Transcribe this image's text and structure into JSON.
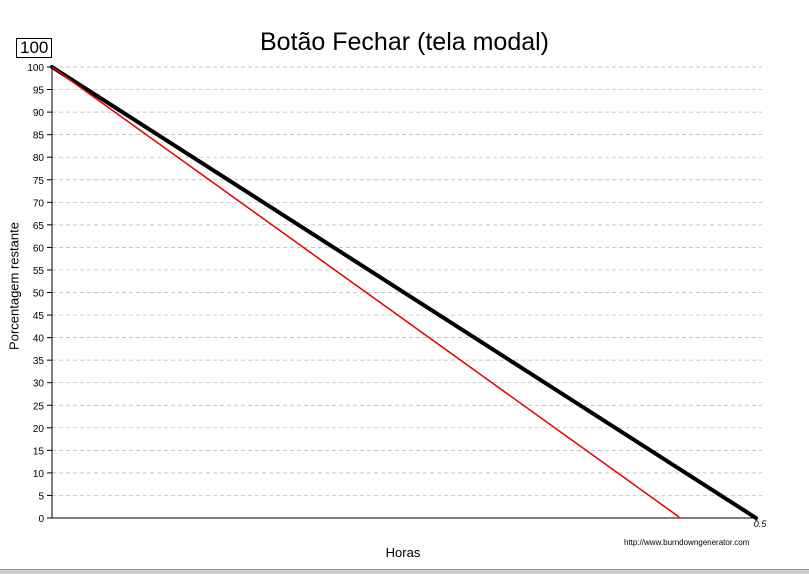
{
  "badge": "100",
  "source_url": "http://www.burndowngenerator.com",
  "edge_glyph": ")",
  "chart_data": {
    "type": "line",
    "title": "Botão Fechar (tela modal)",
    "xlabel": "Horas",
    "ylabel": "Porcentagem restante",
    "xlim": [
      0,
      0.5
    ],
    "ylim": [
      0,
      100
    ],
    "xticks": [
      {
        "value": 0.5,
        "label": "0.5"
      }
    ],
    "yticks": [
      0,
      5,
      10,
      15,
      20,
      25,
      30,
      35,
      40,
      45,
      50,
      55,
      60,
      65,
      70,
      75,
      80,
      85,
      90,
      95,
      100
    ],
    "grid": true,
    "series": [
      {
        "color": "#000000",
        "x": [
          0,
          0.5
        ],
        "y": [
          100,
          0
        ]
      },
      {
        "color": "#e00000",
        "x": [
          0,
          0.445
        ],
        "y": [
          100,
          0.3
        ]
      }
    ]
  }
}
